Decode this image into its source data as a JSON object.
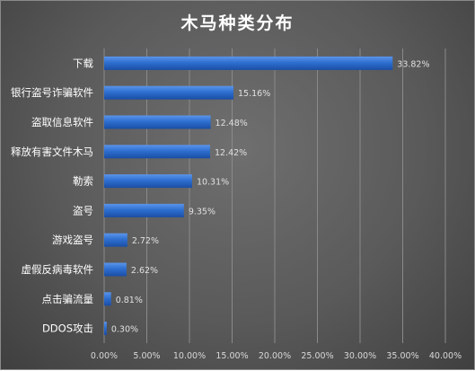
{
  "chart_data": {
    "type": "bar",
    "orientation": "horizontal",
    "title": "木马种类分布",
    "categories": [
      "下载",
      "银行盗号诈骗软件",
      "盗取信息软件",
      "释放有害文件木马",
      "勒索",
      "盗号",
      "游戏盗号",
      "虚假反病毒软件",
      "点击骗流量",
      "DDOS攻击"
    ],
    "values": [
      33.82,
      15.16,
      12.48,
      12.42,
      10.31,
      9.35,
      2.72,
      2.62,
      0.81,
      0.3
    ],
    "value_labels": [
      "33.82%",
      "15.16%",
      "12.48%",
      "12.42%",
      "10.31%",
      "9.35%",
      "2.72%",
      "2.62%",
      "0.81%",
      "0.30%"
    ],
    "xlim": [
      0,
      40
    ],
    "xticks": [
      0,
      5,
      10,
      15,
      20,
      25,
      30,
      35,
      40
    ],
    "xtick_labels": [
      "0.00%",
      "5.00%",
      "10.00%",
      "15.00%",
      "20.00%",
      "25.00%",
      "30.00%",
      "35.00%",
      "40.00%"
    ],
    "xlabel": "",
    "ylabel": "",
    "grid": true,
    "bar_color": "#2e6fd0",
    "background_color": "#5a5a5a",
    "grid_color": "#8a8a8a"
  }
}
